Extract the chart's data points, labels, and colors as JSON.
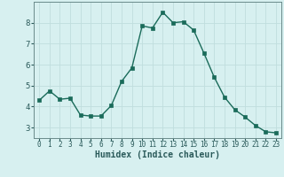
{
  "x": [
    0,
    1,
    2,
    3,
    4,
    5,
    6,
    7,
    8,
    9,
    10,
    11,
    12,
    13,
    14,
    15,
    16,
    17,
    18,
    19,
    20,
    21,
    22,
    23
  ],
  "y": [
    4.3,
    4.75,
    4.35,
    4.4,
    3.6,
    3.55,
    3.55,
    4.05,
    5.2,
    5.85,
    7.85,
    7.75,
    8.5,
    8.0,
    8.05,
    7.65,
    6.55,
    5.4,
    4.45,
    3.85,
    3.5,
    3.1,
    2.8,
    2.75
  ],
  "line_color": "#1a6b5a",
  "marker": "D",
  "bg_color": "#d7f0f0",
  "grid_color": "#c0dede",
  "xlabel": "Humidex (Indice chaleur)",
  "xlim": [
    -0.5,
    23.5
  ],
  "ylim": [
    2.5,
    9.0
  ],
  "yticks": [
    3,
    4,
    5,
    6,
    7,
    8
  ],
  "xticks": [
    0,
    1,
    2,
    3,
    4,
    5,
    6,
    7,
    8,
    9,
    10,
    11,
    12,
    13,
    14,
    15,
    16,
    17,
    18,
    19,
    20,
    21,
    22,
    23
  ],
  "xtick_labels": [
    "0",
    "1",
    "2",
    "3",
    "4",
    "5",
    "6",
    "7",
    "8",
    "9",
    "10",
    "11",
    "12",
    "13",
    "14",
    "15",
    "16",
    "17",
    "18",
    "19",
    "20",
    "21",
    "22",
    "23"
  ],
  "spine_color": "#6a8a8a",
  "axis_color": "#2a5a5a",
  "xlabel_fontsize": 7.0,
  "xtick_fontsize": 5.5,
  "ytick_fontsize": 6.5
}
